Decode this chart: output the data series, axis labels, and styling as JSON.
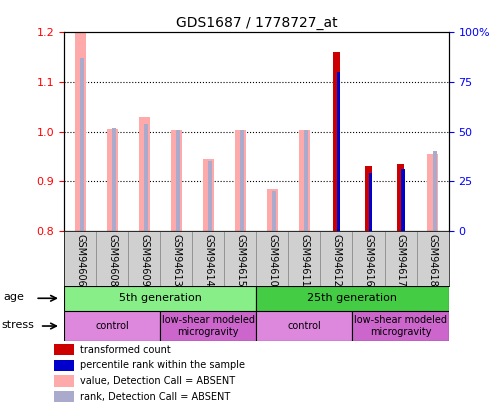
{
  "title": "GDS1687 / 1778727_at",
  "samples": [
    "GSM94606",
    "GSM94608",
    "GSM94609",
    "GSM94613",
    "GSM94614",
    "GSM94615",
    "GSM94610",
    "GSM94611",
    "GSM94612",
    "GSM94616",
    "GSM94617",
    "GSM94618"
  ],
  "transformed_count": [
    null,
    null,
    null,
    null,
    null,
    null,
    null,
    null,
    1.16,
    0.93,
    0.935,
    null
  ],
  "percentile_rank": [
    null,
    null,
    null,
    null,
    null,
    null,
    null,
    null,
    80,
    29,
    31,
    null
  ],
  "value_absent": [
    1.2,
    1.005,
    1.03,
    1.003,
    0.945,
    1.003,
    0.885,
    1.003,
    null,
    null,
    null,
    0.955
  ],
  "rank_absent": [
    87,
    52,
    54,
    51,
    35,
    51,
    20,
    51,
    null,
    null,
    null,
    40
  ],
  "ylim_left": [
    0.8,
    1.2
  ],
  "ylim_right": [
    0,
    100
  ],
  "yticks_left": [
    0.8,
    0.9,
    1.0,
    1.1,
    1.2
  ],
  "yticks_right": [
    0,
    25,
    50,
    75,
    100
  ],
  "color_transformed": "#cc0000",
  "color_percentile": "#0000cc",
  "color_value_absent": "#ffaaaa",
  "color_rank_absent": "#aaaacc",
  "age_groups": [
    {
      "label": "5th generation",
      "start": 0,
      "end": 6,
      "color": "#88ee88"
    },
    {
      "label": "25th generation",
      "start": 6,
      "end": 12,
      "color": "#44cc44"
    }
  ],
  "stress_groups": [
    {
      "label": "control",
      "start": 0,
      "end": 3,
      "color": "#dd88dd"
    },
    {
      "label": "low-shear modeled\nmicrogravity",
      "start": 3,
      "end": 6,
      "color": "#cc66cc"
    },
    {
      "label": "control",
      "start": 6,
      "end": 9,
      "color": "#dd88dd"
    },
    {
      "label": "low-shear modeled\nmicrogravity",
      "start": 9,
      "end": 12,
      "color": "#cc66cc"
    }
  ],
  "legend_items": [
    {
      "label": "transformed count",
      "color": "#cc0000"
    },
    {
      "label": "percentile rank within the sample",
      "color": "#0000cc"
    },
    {
      "label": "value, Detection Call = ABSENT",
      "color": "#ffaaaa"
    },
    {
      "label": "rank, Detection Call = ABSENT",
      "color": "#aaaacc"
    }
  ],
  "bar_width": 0.35
}
